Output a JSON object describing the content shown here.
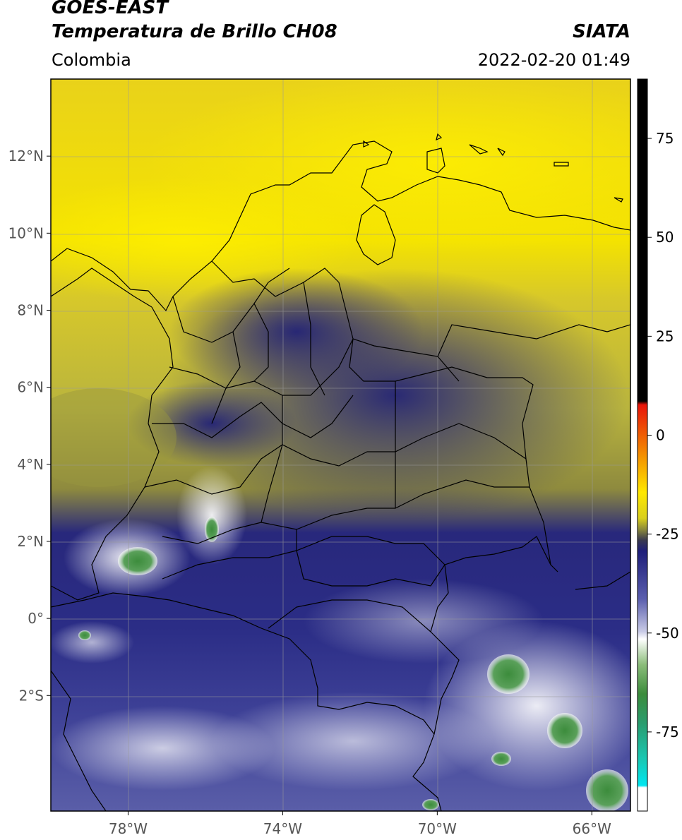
{
  "header": {
    "satellite": "GOES-EAST",
    "product": "Temperatura de Brillo CH08",
    "organization": "SIATA",
    "region": "Colombia",
    "datetime": "2022-02-20 01:49"
  },
  "map": {
    "lat_range": [
      -5,
      14
    ],
    "lon_range": [
      -80,
      -65
    ],
    "lat_ticks": [
      "12°N",
      "10°N",
      "8°N",
      "6°N",
      "4°N",
      "2°N",
      "0°",
      "2°S"
    ],
    "lat_tick_values": [
      12,
      10,
      8,
      6,
      4,
      2,
      0,
      -2
    ],
    "lon_ticks": [
      "78°W",
      "74°W",
      "70°W",
      "66°W"
    ],
    "lon_tick_values": [
      -78,
      -74,
      -70,
      -66
    ],
    "gridlines": true
  },
  "colorbar": {
    "range": [
      -95,
      90
    ],
    "tick_labels": [
      "75",
      "50",
      "25",
      "0",
      "-25",
      "-50",
      "-75"
    ],
    "tick_values": [
      75,
      50,
      25,
      0,
      -25,
      -50,
      -75
    ],
    "colors": {
      "warm_top": "#000000",
      "red": "#e8140a",
      "orange": "#f59a00",
      "yellow": "#ffe800",
      "olive": "#8c8a3a",
      "navy": "#1e1e7a",
      "white": "#ffffff",
      "green": "#3c8c3c",
      "teal": "#19c8b4",
      "cyan": "#00e6f0"
    }
  }
}
